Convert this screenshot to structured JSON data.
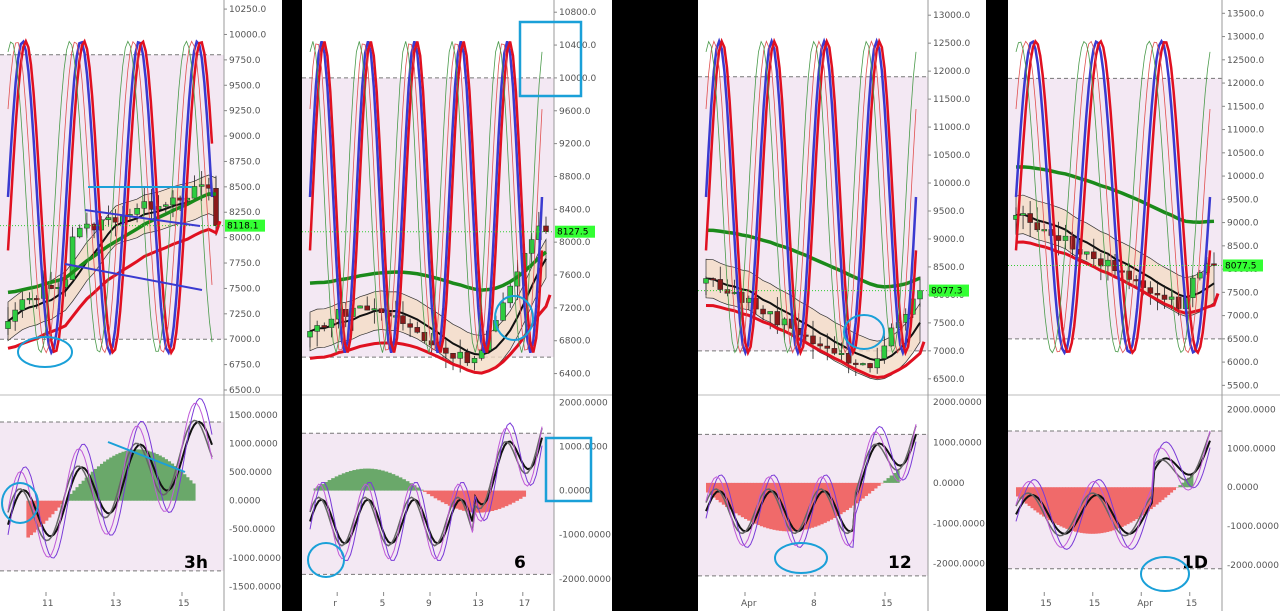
{
  "colors": {
    "bull": "#2ecc40",
    "bear": "#8b1a1a",
    "ema_fast": "#e01020",
    "ema_slow": "#1a8a1a",
    "stoch_blue": "#3a3ad0",
    "band_fill": "#f4dcc6",
    "zone_fill": "#f3e8f3",
    "annot": "#1aa0d8",
    "hist_pos": "#6aa86a",
    "hist_neg": "#f06a6a",
    "price_label": "#33ff33"
  },
  "chart_data": [
    {
      "type": "candlestick",
      "timeframe": "3h",
      "current_price": 8118.1,
      "price_label": "8118.1",
      "price_ticks": [
        "10250.0",
        "10000.0",
        "9750.0",
        "9500.0",
        "9250.0",
        "9000.0",
        "8750.0",
        "8500.0",
        "8250.0",
        "8000.0",
        "7750.0",
        "7500.0",
        "7250.0",
        "7000.0",
        "6750.0",
        "6500.0"
      ],
      "price_range": [
        6500,
        10300
      ],
      "osc_ticks": [
        "1500.0000",
        "1000.0000",
        "500.0000",
        "0.0000",
        "-500.0000",
        "-1000.0000",
        "-1500.0000"
      ],
      "osc_range": [
        -1600,
        1800
      ],
      "x_ticks": [
        "11",
        "13",
        "15"
      ],
      "zone_upper": 9800,
      "zone_lower": 7000,
      "osc_zone": [
        1380,
        -1230
      ]
    },
    {
      "type": "candlestick",
      "timeframe": "6",
      "current_price": 8127.5,
      "price_label": "8127.5",
      "price_ticks": [
        "10800.0",
        "10400.0",
        "10000.0",
        "9600.0",
        "9200.0",
        "8800.0",
        "8400.0",
        "8000.0",
        "7600.0",
        "7200.0",
        "6800.0",
        "6400.0"
      ],
      "price_range": [
        6200,
        10900
      ],
      "osc_ticks": [
        "2000.0000",
        "1000.0000",
        "0.0000",
        "-1000.0000",
        "-2000.0000"
      ],
      "osc_range": [
        -2300,
        2100
      ],
      "x_ticks": [
        "r",
        "5",
        "9",
        "13",
        "17"
      ],
      "zone_upper": 10000,
      "zone_lower": 6600,
      "osc_zone": [
        1300,
        -1900
      ]
    },
    {
      "type": "candlestick",
      "timeframe": "12",
      "current_price": 8077.3,
      "price_label": "8077.3",
      "price_ticks": [
        "13000.0",
        "12500.0",
        "12000.0",
        "11500.0",
        "11000.0",
        "10500.0",
        "10000.0",
        "9500.0",
        "9000.0",
        "8500.0",
        "8000.0",
        "7500.0",
        "7000.0",
        "6500.0"
      ],
      "price_range": [
        6300,
        13200
      ],
      "osc_ticks": [
        "2000.0000",
        "1000.0000",
        "0.0000",
        "-1000.0000",
        "-2000.0000"
      ],
      "osc_range": [
        -2700,
        2100
      ],
      "x_ticks": [
        "Apr",
        "8",
        "15"
      ],
      "zone_upper": 11900,
      "zone_lower": 7000,
      "osc_zone": [
        1200,
        -2300
      ]
    },
    {
      "type": "candlestick",
      "timeframe": "1D",
      "current_price": 8077.5,
      "price_label": "8077.5",
      "price_ticks": [
        "13500.0",
        "13000.0",
        "12500.0",
        "12000.0",
        "11500.0",
        "11000.0",
        "10500.0",
        "10000.0",
        "9500.0",
        "9000.0",
        "8500.0",
        "8000.0",
        "7500.0",
        "7000.0",
        "6500.0",
        "6000.0",
        "5500.0"
      ],
      "price_range": [
        5400,
        13700
      ],
      "osc_ticks": [
        "2000.0000",
        "1000.0000",
        "0.0000",
        "-1000.0000",
        "-2000.0000"
      ],
      "osc_range": [
        -2700,
        2300
      ],
      "x_ticks": [
        "15",
        "15",
        "Apr",
        "15"
      ],
      "zone_upper": 12100,
      "zone_lower": 6500,
      "osc_zone": [
        1450,
        -2100
      ]
    }
  ]
}
